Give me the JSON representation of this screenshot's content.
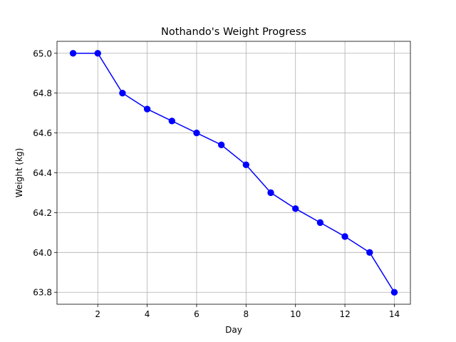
{
  "chart_data": {
    "type": "line",
    "title": "Nothando's Weight Progress",
    "xlabel": "Day",
    "ylabel": "Weight (kg)",
    "x": [
      1,
      2,
      3,
      4,
      5,
      6,
      7,
      8,
      9,
      10,
      11,
      12,
      13,
      14
    ],
    "series": [
      {
        "values": [
          65.0,
          65.0,
          64.8,
          64.72,
          64.66,
          64.6,
          64.54,
          64.44,
          64.3,
          64.22,
          64.15,
          64.08,
          64.0,
          63.8
        ],
        "color": "#0000ff",
        "marker": "circle"
      }
    ],
    "xlim": [
      0.35,
      14.65
    ],
    "ylim": [
      63.74,
      65.06
    ],
    "xticks": [
      2,
      4,
      6,
      8,
      10,
      12,
      14
    ],
    "yticks": [
      63.8,
      64.0,
      64.2,
      64.4,
      64.6,
      64.8,
      65.0
    ],
    "xtick_labels": [
      "2",
      "4",
      "6",
      "8",
      "10",
      "12",
      "14"
    ],
    "ytick_labels": [
      "63.8",
      "64.0",
      "64.2",
      "64.4",
      "64.6",
      "64.8",
      "65.0"
    ],
    "grid": true,
    "legend": "none"
  }
}
